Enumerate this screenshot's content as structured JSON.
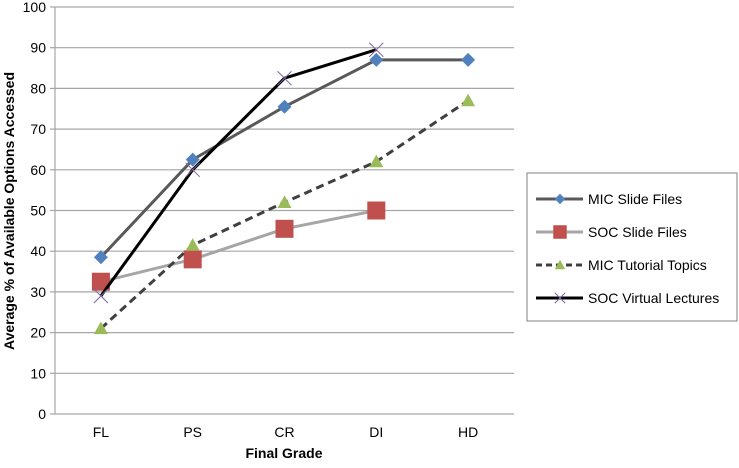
{
  "chart_data": {
    "type": "line",
    "title": "",
    "xlabel": "Final Grade",
    "ylabel": "Average % of Available Options Accessed",
    "ylim": [
      0,
      100
    ],
    "yticks": [
      0,
      10,
      20,
      30,
      40,
      50,
      60,
      70,
      80,
      90,
      100
    ],
    "grid": true,
    "legend_position": "right",
    "categories": [
      "FL",
      "PS",
      "CR",
      "DI",
      "HD"
    ],
    "series": [
      {
        "name": "MIC Slide Files",
        "marker": "diamond",
        "line_style": "solid",
        "line_color": "#595959",
        "marker_color": "#4f81bd",
        "values": [
          38.5,
          62.5,
          75.5,
          87,
          87
        ]
      },
      {
        "name": "SOC Slide Files",
        "marker": "square",
        "line_style": "solid",
        "line_color": "#a6a6a6",
        "marker_color": "#c0504d",
        "values": [
          32.5,
          38,
          45.5,
          50,
          null
        ]
      },
      {
        "name": "MIC Tutorial Topics",
        "marker": "triangle",
        "line_style": "dashed",
        "line_color": "#404040",
        "marker_color": "#9bbb59",
        "values": [
          21,
          41.5,
          52,
          62,
          77
        ]
      },
      {
        "name": "SOC Virtual Lectures",
        "marker": "x",
        "line_style": "solid",
        "line_color": "#000000",
        "marker_color": "#8064a2",
        "values": [
          29,
          60,
          82.5,
          89.5,
          null
        ]
      }
    ]
  }
}
